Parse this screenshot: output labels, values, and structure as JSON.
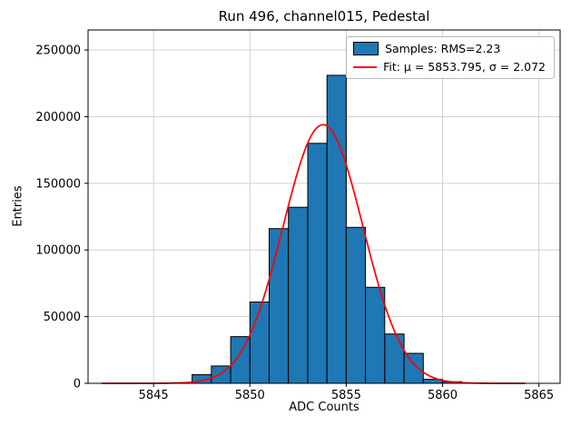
{
  "chart_data": {
    "type": "bar",
    "subtype": "histogram",
    "title": "Run 496, channel015, Pedestal",
    "xlabel": "ADC Counts",
    "ylabel": "Entries",
    "bin_edges": [
      5846,
      5847,
      5848,
      5849,
      5850,
      5851,
      5852,
      5853,
      5854,
      5855,
      5856,
      5857,
      5858,
      5859,
      5860,
      5861,
      5862
    ],
    "counts": [
      500,
      6500,
      13000,
      35000,
      61000,
      116000,
      132000,
      180000,
      231000,
      117000,
      72000,
      37000,
      22500,
      3000,
      1200,
      300
    ],
    "fit": {
      "type": "gaussian",
      "mu": 5853.795,
      "sigma": 2.072,
      "amplitude": 194000,
      "x_range": [
        5842.3,
        5864.3
      ]
    },
    "rms": 2.23,
    "legend": [
      {
        "label": "Samples: RMS=2.23",
        "marker": "patch",
        "color": "#1f77b4"
      },
      {
        "label": "Fit: μ = 5853.795, σ = 2.072",
        "marker": "line",
        "color": "#ff0000"
      }
    ],
    "xticks": [
      5845,
      5850,
      5855,
      5860,
      5865
    ],
    "yticks": [
      0,
      50000,
      100000,
      150000,
      200000,
      250000
    ],
    "xlim": [
      5841.6,
      5866.1
    ],
    "ylim": [
      0,
      265000
    ],
    "grid": true,
    "legend_position": "upper right",
    "colors": {
      "bar": "#1f77b4",
      "bar_edge": "#000000",
      "fit_line": "#ff0000",
      "grid": "#cccccc",
      "spine": "#000000"
    }
  }
}
